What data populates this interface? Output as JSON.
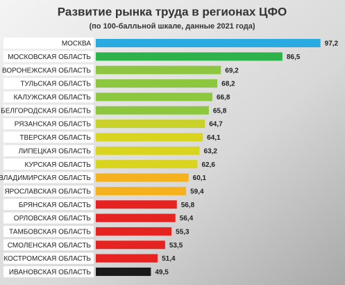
{
  "chart_data": {
    "type": "hbar",
    "title": "Развитие рынка труда в регионах ЦФО",
    "subtitle": "(по 100-балльной шкале, данные 2021 года)",
    "categories": [
      "МОСКВА",
      "МОСКОВСКАЯ ОБЛАСТЬ",
      "ВОРОНЕЖСКАЯ ОБЛАСТЬ",
      "ТУЛЬСКАЯ ОБЛАСТЬ",
      "КАЛУЖСКАЯ ОБЛАСТЬ",
      "БЕЛГОРОДСКАЯ ОБЛАСТЬ",
      "РЯЗАНСКАЯ ОБЛАСТЬ",
      "ТВЕРСКАЯ ОБЛАСТЬ",
      "ЛИПЕЦКАЯ ОБЛАСТЬ",
      "КУРСКАЯ ОБЛАСТЬ",
      "ВЛАДИМИРСКАЯ ОБЛАСТЬ",
      "ЯРОСЛАВСКАЯ ОБЛАСТЬ",
      "БРЯНСКАЯ ОБЛАСТЬ",
      "ОРЛОВСКАЯ ОБЛАСТЬ",
      "ТАМБОВСКАЯ ОБЛАСТЬ",
      "СМОЛЕНСКАЯ ОБЛАСТЬ",
      "КОСТРОМСКАЯ ОБЛАСТЬ",
      "ИВАНОВСКАЯ ОБЛАСТЬ"
    ],
    "values": [
      97.2,
      86.5,
      69.2,
      68.2,
      66.8,
      65.8,
      64.7,
      64.1,
      63.2,
      62.6,
      60.1,
      59.4,
      56.8,
      56.4,
      55.3,
      53.5,
      51.4,
      49.5
    ],
    "value_labels": [
      "97,2",
      "86,5",
      "69,2",
      "68,2",
      "66,8",
      "65,8",
      "64,7",
      "64,1",
      "63,2",
      "62,6",
      "60,1",
      "59,4",
      "56,8",
      "56,4",
      "55,3",
      "53,5",
      "51,4",
      "49,5"
    ],
    "colors": [
      "#29abe2",
      "#2db34a",
      "#8dc63f",
      "#8dc63f",
      "#8dc63f",
      "#8dc63f",
      "#c9d22a",
      "#d9d41e",
      "#d9d41e",
      "#d9d41e",
      "#f5b21e",
      "#f5b21e",
      "#e52421",
      "#e52421",
      "#e52421",
      "#e52421",
      "#e52421",
      "#1a1a1a"
    ],
    "xlim": [
      34,
      100
    ]
  }
}
